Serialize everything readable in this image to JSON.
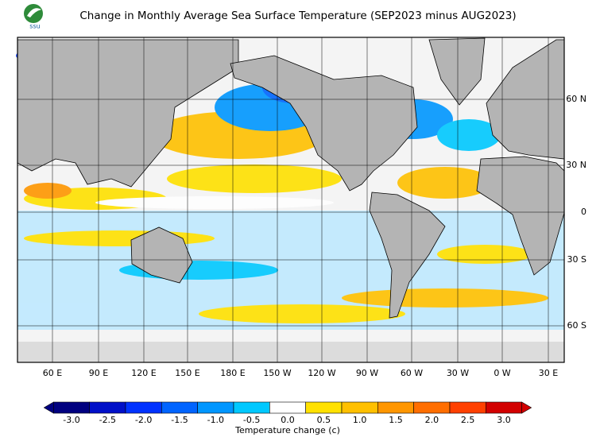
{
  "title": "Change in Monthly Average Sea Surface Temperature (SEP2023 minus AUG2023)",
  "logo_text": "ssu",
  "map": {
    "lon_labels": [
      "60 E",
      "90 E",
      "120 E",
      "150 E",
      "180 E",
      "150 W",
      "120 W",
      "90 W",
      "60 W",
      "30 W",
      "0 W",
      "30 E"
    ],
    "lat_labels": [
      "60 N",
      "30 N",
      "0",
      "30 S",
      "60 S"
    ]
  },
  "colorbar": {
    "label": "Temperature change  (c)",
    "ticks": [
      {
        "value": -3,
        "label": "-3.0"
      },
      {
        "value": -2.5,
        "label": "-2.5"
      },
      {
        "value": -2,
        "label": "-2.0"
      },
      {
        "value": -1.5,
        "label": "-1.5"
      },
      {
        "value": -1,
        "label": "-1.0"
      },
      {
        "value": -0.5,
        "label": "-0.5"
      },
      {
        "value": 0,
        "label": "0.0"
      },
      {
        "value": 0.5,
        "label": "0.5"
      },
      {
        "value": 1,
        "label": "1.0"
      },
      {
        "value": 1.5,
        "label": "1.5"
      },
      {
        "value": 2,
        "label": "2.0"
      },
      {
        "value": 2.5,
        "label": "2.5"
      },
      {
        "value": 3,
        "label": "3.0"
      }
    ],
    "colors": [
      "#000080",
      "#0010c8",
      "#0032ff",
      "#0064ff",
      "#0096ff",
      "#00c8ff",
      "#ffffff",
      "#ffe100",
      "#ffc000",
      "#ff9600",
      "#ff6e00",
      "#ff4000",
      "#d20000"
    ]
  }
}
